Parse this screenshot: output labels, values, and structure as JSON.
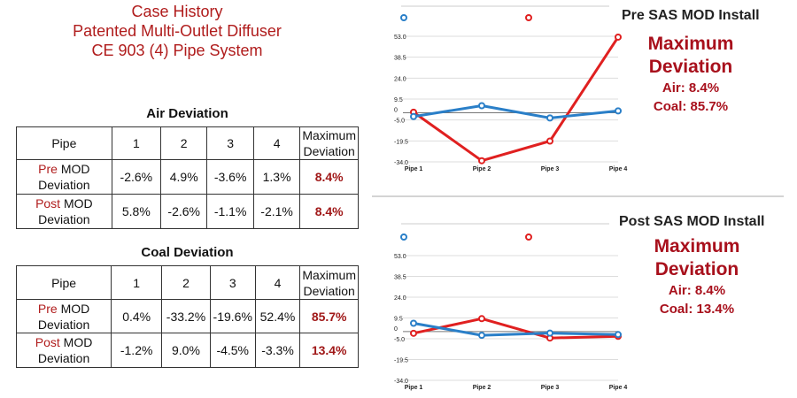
{
  "title": [
    "Case History",
    "Patented Multi-Outlet Diffuser",
    "CE 903 (4) Pipe System"
  ],
  "air_table": {
    "caption": "Air Deviation",
    "header": [
      "Pipe",
      "1",
      "2",
      "3",
      "4",
      "Maximum Deviation"
    ],
    "rows": [
      {
        "prefix": "Pre",
        "label": " MOD Deviation",
        "values": [
          "-2.6%",
          "4.9%",
          "-3.6%",
          "1.3%"
        ],
        "max": "8.4%"
      },
      {
        "prefix": "Post",
        "label": " MOD Deviation",
        "values": [
          "5.8%",
          "-2.6%",
          "-1.1%",
          "-2.1%"
        ],
        "max": "8.4%"
      }
    ]
  },
  "coal_table": {
    "caption": "Coal Deviation",
    "header": [
      "Pipe",
      "1",
      "2",
      "3",
      "4",
      "Maximum Deviation"
    ],
    "rows": [
      {
        "prefix": "Pre",
        "label": " MOD Deviation",
        "values": [
          "0.4%",
          "-33.2%",
          "-19.6%",
          "52.4%"
        ],
        "max": "85.7%"
      },
      {
        "prefix": "Post",
        "label": " MOD Deviation",
        "values": [
          "-1.2%",
          "9.0%",
          "-4.5%",
          "-3.3%"
        ],
        "max": "13.4%"
      }
    ]
  },
  "colors": {
    "air": "#2a7fc8",
    "coal": "#e02020",
    "accent": "#a8101c"
  },
  "chart_data": [
    {
      "type": "line",
      "title": "Pre SAS MOD Install",
      "categories": [
        "Pipe 1",
        "Pipe 2",
        "Pipe 3",
        "Pipe 4"
      ],
      "yticks": [
        "53.0",
        "38.5",
        "24.0",
        "9.5",
        "0",
        "-5.0",
        "-19.5",
        "-34.0"
      ],
      "ylim": [
        -34,
        53
      ],
      "series": [
        {
          "name": "Air",
          "color": "#2a7fc8",
          "values": [
            -2.6,
            4.9,
            -3.6,
            1.3
          ]
        },
        {
          "name": "Coal",
          "color": "#e02020",
          "values": [
            0.4,
            -33.2,
            -19.6,
            52.4
          ]
        }
      ],
      "summary": {
        "heading1": "Maximum",
        "heading2": "Deviation",
        "air": "Air: 8.4%",
        "coal": "Coal: 85.7%"
      }
    },
    {
      "type": "line",
      "title": "Post SAS MOD Install",
      "categories": [
        "Pipe 1",
        "Pipe 2",
        "Pipe 3",
        "Pipe 4"
      ],
      "yticks": [
        "53.0",
        "38.5",
        "24.0",
        "9.5",
        "0",
        "-5.0",
        "-19.5",
        "-34.0"
      ],
      "ylim": [
        -34,
        53
      ],
      "series": [
        {
          "name": "Air",
          "color": "#2a7fc8",
          "values": [
            5.8,
            -2.6,
            -1.1,
            -2.1
          ]
        },
        {
          "name": "Coal",
          "color": "#e02020",
          "values": [
            -1.2,
            9.0,
            -4.5,
            -3.3
          ]
        }
      ],
      "summary": {
        "heading1": "Maximum",
        "heading2": "Deviation",
        "air": "Air: 8.4%",
        "coal": "Coal: 13.4%"
      }
    }
  ]
}
